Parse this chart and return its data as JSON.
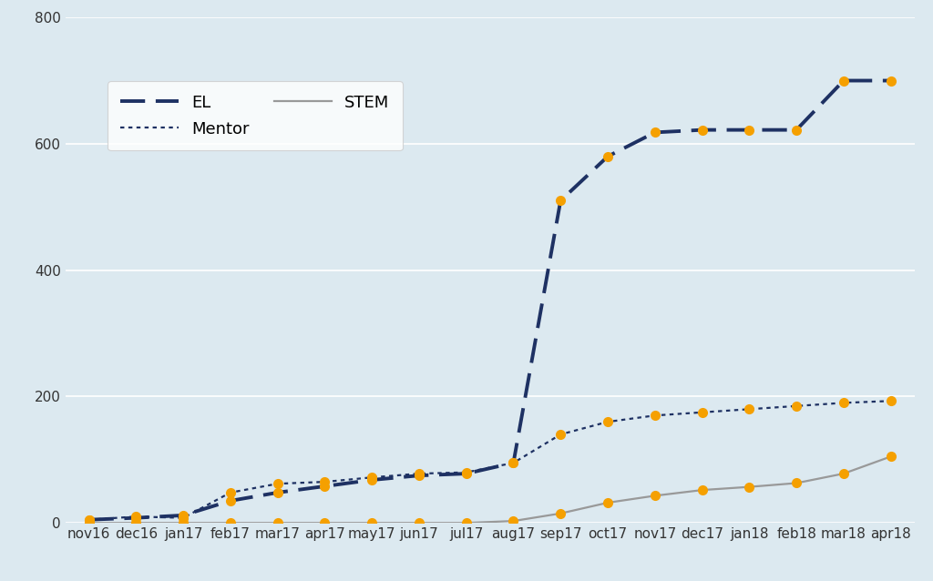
{
  "x_labels": [
    "nov16",
    "dec16",
    "jan17",
    "feb17",
    "mar17",
    "apr17",
    "may17",
    "jun17",
    "jul17",
    "aug17",
    "sep17",
    "oct17",
    "nov17",
    "dec17",
    "jan18",
    "feb18",
    "mar18",
    "apr18"
  ],
  "EL": [
    5,
    8,
    12,
    35,
    48,
    58,
    68,
    75,
    78,
    95,
    510,
    580,
    618,
    622,
    622,
    622,
    700,
    700
  ],
  "Mentor": [
    5,
    10,
    8,
    48,
    62,
    65,
    72,
    78,
    80,
    95,
    140,
    160,
    170,
    175,
    180,
    185,
    190,
    193
  ],
  "STEM": [
    0,
    0,
    0,
    0,
    0,
    0,
    0,
    0,
    0,
    3,
    15,
    32,
    43,
    52,
    57,
    63,
    78,
    105
  ],
  "el_color": "#1e3163",
  "mentor_color": "#1e3163",
  "stem_color": "#999999",
  "marker_color": "#f5a000",
  "bg_color": "#dce9f0",
  "ylim": [
    0,
    800
  ],
  "yticks": [
    0,
    200,
    400,
    600,
    800
  ],
  "grid_color": "#ffffff",
  "legend_bg": "#ffffff",
  "legend_edge": "#cccccc"
}
